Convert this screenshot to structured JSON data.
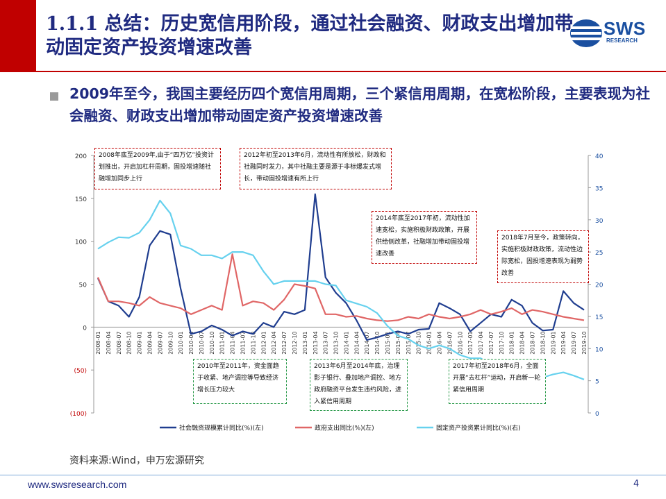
{
  "header": {
    "title": "1.1.1 总结：历史宽信用阶段，通过社会融资、财政支出增加带动固定资产投资增速改善",
    "logo_text": "SWS",
    "logo_sub": "RESEARCH"
  },
  "summary": "2009年至今，我国主要经历四个宽信用周期，三个紧信用周期，在宽松阶段，主要表现为社会融资、财政支出增加带动固定资产投资增速改善",
  "annotations": {
    "a1": "2008年底至2009年,由于“四万亿”投资计划推出，开启加杠杆周期，固投增速随社融增加同步上行",
    "a2": "2012年初至2013年6月，流动性有所放松，财政和社融同时发力，其中社融主要是源于非标爆发式增长，带动固投增速有所上行",
    "a3": "2014年底至2017年初，流动性加速宽松，实施积极财政政策，开展供给侧改革，社融增加带动固投增速改善",
    "a4": "2018年7月至今，政策转向，实施积极财政政策，流动性边际宽松，固投增速表现为弱势改善",
    "a5": "2010年至2011年，资金面趋于收紧、地产调控等导致经济增长压力较大",
    "a6": "2013年6月至2014年底，治理影子银行、叠加地产调控、地方政府融资平台发生违约风险，进入紧信用周期",
    "a7": "2017年初至2018年6月，全面开展“去杠杆”运动，开启新一轮紧信用周期"
  },
  "colors": {
    "navy": "#1f2a80",
    "red": "#c00000",
    "social_financing": "#1f3d8f",
    "fiscal": "#e06666",
    "fixed_asset": "#66d1ee"
  },
  "source": "资料来源:Wind，申万宏源研究",
  "footer": {
    "website": "www.swsresearch.com",
    "page": "4"
  },
  "chart_data": {
    "type": "line",
    "x": [
      "2008-01",
      "2008-04",
      "2008-07",
      "2008-10",
      "2009-01",
      "2009-04",
      "2009-07",
      "2009-10",
      "2010-01",
      "2010-04",
      "2010-07",
      "2010-10",
      "2011-01",
      "2011-04",
      "2011-07",
      "2011-10",
      "2012-01",
      "2012-04",
      "2012-07",
      "2012-10",
      "2013-01",
      "2013-04",
      "2013-07",
      "2013-10",
      "2014-01",
      "2014-04",
      "2014-07",
      "2014-10",
      "2015-01",
      "2015-04",
      "2015-07",
      "2015-10",
      "2016-01",
      "2016-04",
      "2016-07",
      "2016-10",
      "2017-01",
      "2017-04",
      "2017-07",
      "2017-10",
      "2018-01",
      "2018-04",
      "2018-07",
      "2018-10",
      "2019-01",
      "2019-04",
      "2019-07",
      "2019-10"
    ],
    "y_left_ticks": [
      "200",
      "150",
      "100",
      "50",
      "0",
      "(50)",
      "(100)"
    ],
    "y_left_range": [
      -100,
      200
    ],
    "y_right_ticks": [
      "40",
      "35",
      "30",
      "25",
      "20",
      "15",
      "10",
      "5",
      "0"
    ],
    "y_right_range": [
      0,
      40
    ],
    "series": [
      {
        "name": "社会融资规模累计同比(%)(左)",
        "axis": "left",
        "color": "#1f3d8f",
        "values": [
          57,
          30,
          25,
          12,
          35,
          95,
          112,
          108,
          45,
          -8,
          -5,
          2,
          -3,
          -10,
          -5,
          -8,
          5,
          0,
          18,
          15,
          20,
          155,
          58,
          40,
          28,
          8,
          -15,
          -12,
          -8,
          -5,
          -8,
          -3,
          -2,
          28,
          22,
          15,
          -5,
          5,
          15,
          12,
          32,
          25,
          5,
          -4,
          -3,
          42,
          28,
          20
        ]
      },
      {
        "name": "政府支出同比(%)(左)",
        "axis": "left",
        "color": "#e06666",
        "values": [
          58,
          30,
          30,
          28,
          25,
          35,
          28,
          25,
          22,
          15,
          20,
          25,
          20,
          85,
          25,
          30,
          28,
          20,
          32,
          50,
          48,
          45,
          15,
          15,
          12,
          13,
          10,
          8,
          7,
          8,
          12,
          10,
          15,
          12,
          10,
          12,
          15,
          20,
          15,
          18,
          22,
          15,
          20,
          18,
          15,
          12,
          10,
          8
        ]
      },
      {
        "name": "固定资产投资累计同比(%)(右)",
        "axis": "right",
        "color": "#66d1ee",
        "values": [
          25.5,
          26.5,
          27.3,
          27.2,
          28,
          30,
          33,
          31,
          26,
          25.5,
          24.5,
          24.5,
          24,
          25,
          25,
          24.5,
          22,
          20,
          20.5,
          20.5,
          20.5,
          20.5,
          20,
          19.8,
          17.5,
          17,
          16.5,
          15.5,
          13.5,
          12,
          11.5,
          10.5,
          10,
          10.5,
          10,
          9,
          8.5,
          8.5,
          7.5,
          6.8,
          7.2,
          7,
          5.5,
          5.5,
          6,
          6.3,
          5.8,
          5.2
        ]
      }
    ]
  }
}
